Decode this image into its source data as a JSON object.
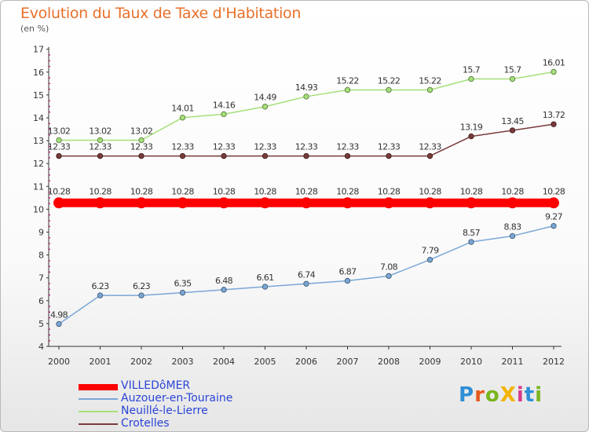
{
  "title": "Evolution du Taux de Taxe d'Habitation",
  "subtitle": "(en %)",
  "logo_text": "ProXiti",
  "logo_colors": [
    "#2f8fd6",
    "#e85a1c",
    "#7ab51d",
    "#f2b400",
    "#d63a8a",
    "#2f8fd6",
    "#7ab51d"
  ],
  "chart_data": {
    "type": "line",
    "title": "Evolution du Taux de Taxe d'Habitation",
    "subtitle": "(en %)",
    "x": [
      "2000",
      "2001",
      "2002",
      "2003",
      "2004",
      "2005",
      "2006",
      "2007",
      "2008",
      "2009",
      "2010",
      "2011",
      "2012"
    ],
    "ylim": [
      4,
      17
    ],
    "yticks": [
      "4",
      "5",
      "6",
      "7",
      "8",
      "9",
      "10",
      "11",
      "12",
      "13",
      "14",
      "15",
      "16",
      "17"
    ],
    "grid": false,
    "legend_position": "bottom-left",
    "series": [
      {
        "name": "VILLEDôMER",
        "color": "#ff0000",
        "values": [
          10.28,
          10.28,
          10.28,
          10.28,
          10.28,
          10.28,
          10.28,
          10.28,
          10.28,
          10.28,
          10.28,
          10.28,
          10.28
        ],
        "labels": [
          "10.28",
          "10.28",
          "10.28",
          "10.28",
          "10.28",
          "10.28",
          "10.28",
          "10.28",
          "10.28",
          "10.28",
          "10.28",
          "10.28",
          "10.28"
        ]
      },
      {
        "name": "Auzouer-en-Touraine",
        "color": "#7aa7d6",
        "values": [
          4.98,
          6.23,
          6.23,
          6.35,
          6.48,
          6.61,
          6.74,
          6.87,
          7.08,
          7.79,
          8.57,
          8.83,
          9.27
        ],
        "labels": [
          "4.98",
          "6.23",
          "6.23",
          "6.35",
          "6.48",
          "6.61",
          "6.74",
          "6.87",
          "7.08",
          "7.79",
          "8.57",
          "8.83",
          "9.27"
        ]
      },
      {
        "name": "Neuillé-le-Lierre",
        "color": "#a6e07a",
        "values": [
          13.02,
          13.02,
          13.02,
          14.01,
          14.16,
          14.49,
          14.93,
          15.22,
          15.22,
          15.22,
          15.7,
          15.7,
          16.01
        ],
        "labels": [
          "13.02",
          "13.02",
          "13.02",
          "14.01",
          "14.16",
          "14.49",
          "14.93",
          "15.22",
          "15.22",
          "15.22",
          "15.7",
          "15.7",
          "16.01"
        ]
      },
      {
        "name": "Crotelles",
        "color": "#7a3b3b",
        "values": [
          12.33,
          12.33,
          12.33,
          12.33,
          12.33,
          12.33,
          12.33,
          12.33,
          12.33,
          12.33,
          13.19,
          13.45,
          13.72
        ],
        "labels": [
          "12.33",
          "12.33",
          "12.33",
          "12.33",
          "12.33",
          "12.33",
          "12.33",
          "12.33",
          "12.33",
          "12.33",
          "13.19",
          "13.45",
          "13.72"
        ]
      }
    ]
  }
}
